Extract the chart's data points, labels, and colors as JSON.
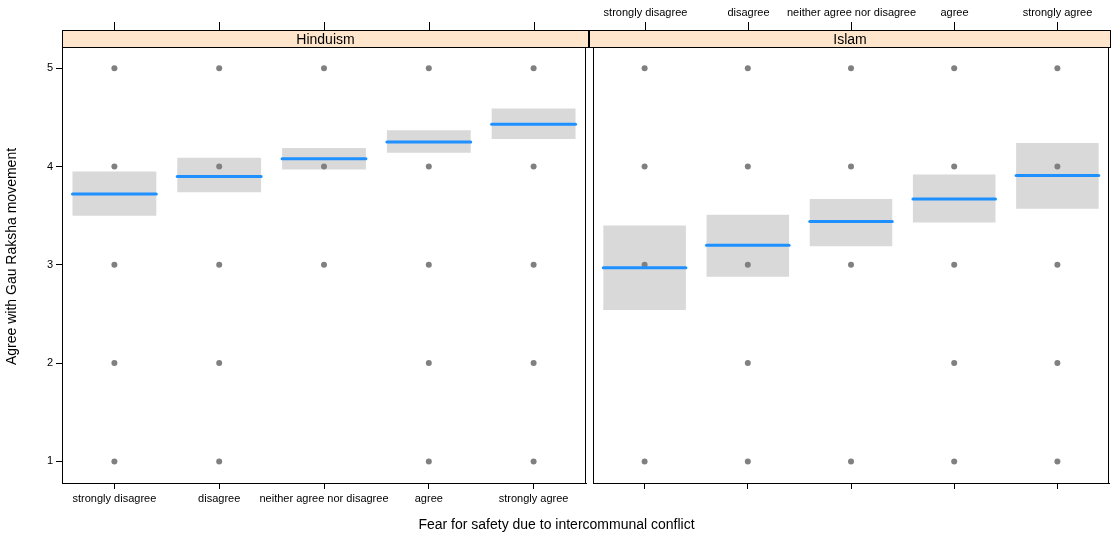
{
  "chart_data": [
    {
      "type": "box",
      "title": "Hinduism",
      "xlabel": "Fear for safety due to intercommunal conflict",
      "ylabel": "Agree with Gau Raksha movement",
      "categories": [
        "strongly disagree",
        "disagree",
        "neither agree nor disagree",
        "agree",
        "strongly agree"
      ],
      "ylim": [
        0.78,
        5.39
      ],
      "yticks": [
        1,
        2,
        3,
        4,
        5
      ],
      "grid": false,
      "legend": false,
      "marker": "circle",
      "series": [
        {
          "color": "#d9d9d9",
          "boxes": [
            {
              "low": 3.5,
              "q1": 3.5,
              "median": 3.72,
              "q3": 3.95,
              "high": 3.95
            },
            {
              "low": 3.74,
              "q1": 3.74,
              "median": 3.9,
              "q3": 4.09,
              "high": 4.09
            },
            {
              "low": 3.97,
              "q1": 3.97,
              "median": 4.08,
              "q3": 4.19,
              "high": 4.19
            },
            {
              "low": 4.14,
              "q1": 4.14,
              "median": 4.25,
              "q3": 4.37,
              "high": 4.37
            },
            {
              "low": 4.28,
              "q1": 4.28,
              "median": 4.43,
              "q3": 4.59,
              "high": 4.59
            }
          ]
        },
        {
          "type": "scatter",
          "color": "#808080",
          "x": [
            "strongly disagree",
            "strongly disagree",
            "strongly disagree",
            "strongly disagree",
            "strongly disagree",
            "disagree",
            "disagree",
            "disagree",
            "disagree",
            "disagree",
            "neither agree nor disagree",
            "neither agree nor disagree",
            "neither agree nor disagree",
            "agree",
            "agree",
            "agree",
            "agree",
            "agree",
            "strongly agree",
            "strongly agree",
            "strongly agree",
            "strongly agree",
            "strongly agree"
          ],
          "values": [
            5,
            4,
            3,
            2,
            1,
            5,
            4,
            3,
            2,
            1,
            5,
            4,
            3,
            5,
            4,
            3,
            2,
            1,
            5,
            4,
            3,
            2,
            1
          ]
        }
      ]
    },
    {
      "type": "box",
      "title": "Islam",
      "categories": [
        "strongly disagree",
        "disagree",
        "neither agree nor disagree",
        "agree",
        "strongly agree"
      ],
      "ylim": [
        0.78,
        5.39
      ],
      "tick_labels": "x",
      "grid": false,
      "legend": false,
      "marker": "circle",
      "series": [
        {
          "color": "#d9d9d9",
          "boxes": [
            {
              "low": 2.54,
              "q1": 2.54,
              "median": 2.97,
              "q3": 3.4,
              "high": 3.4
            },
            {
              "low": 2.88,
              "q1": 2.88,
              "median": 3.2,
              "q3": 3.51,
              "high": 3.51
            },
            {
              "low": 3.19,
              "q1": 3.19,
              "median": 3.44,
              "q3": 3.67,
              "high": 3.67
            },
            {
              "low": 3.43,
              "q1": 3.43,
              "median": 3.67,
              "q3": 3.92,
              "high": 3.92
            },
            {
              "low": 3.57,
              "q1": 3.57,
              "median": 3.91,
              "q3": 4.24,
              "high": 4.24
            }
          ]
        },
        {
          "type": "scatter",
          "color": "#808080",
          "x": [
            "strongly disagree",
            "strongly disagree",
            "strongly disagree",
            "strongly disagree",
            "disagree",
            "disagree",
            "disagree",
            "disagree",
            "disagree",
            "neither agree nor disagree",
            "neither agree nor disagree",
            "neither agree nor disagree",
            "neither agree nor disagree",
            "agree",
            "agree",
            "agree",
            "agree",
            "agree",
            "strongly agree",
            "strongly agree",
            "strongly agree",
            "strongly agree",
            "strongly agree"
          ],
          "values": [
            5,
            4,
            3,
            1,
            5,
            4,
            3,
            2,
            1,
            5,
            4,
            3,
            1,
            5,
            4,
            3,
            2,
            1,
            5,
            4,
            3,
            2,
            1
          ]
        }
      ]
    }
  ]
}
